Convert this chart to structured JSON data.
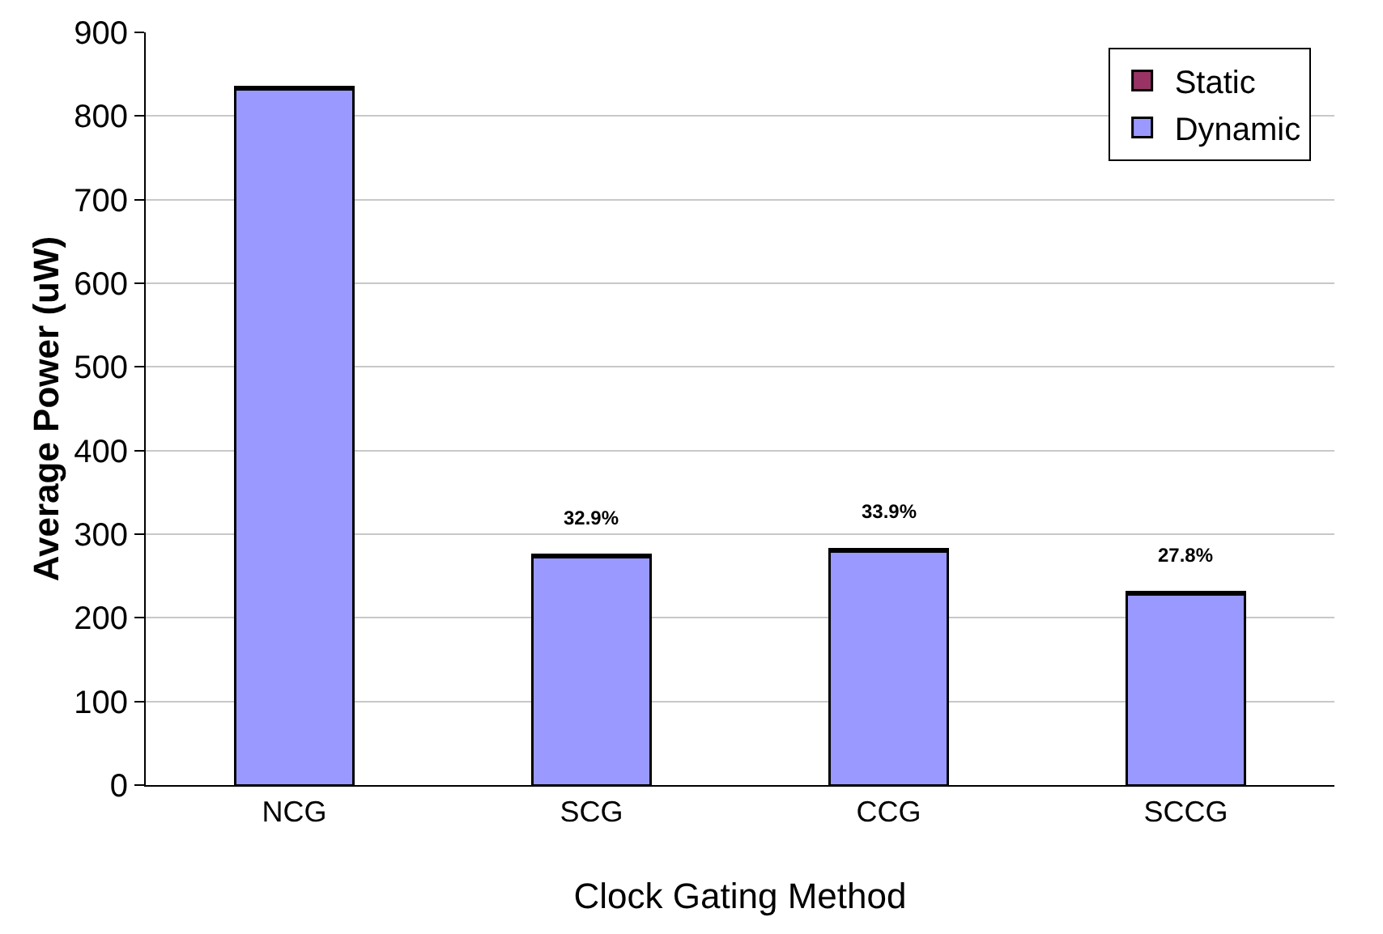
{
  "chart_data": {
    "type": "bar",
    "stacked": true,
    "xlabel": "Clock Gating Method",
    "ylabel": "Average Power (uW)",
    "categories": [
      "NCG",
      "SCG",
      "CCG",
      "SCCG"
    ],
    "series": [
      {
        "name": "Dynamic",
        "color": "#9999ff",
        "values": [
          832,
          272,
          279,
          228
        ]
      },
      {
        "name": "Static",
        "color": "#993366",
        "values": [
          3,
          3,
          3,
          3
        ]
      }
    ],
    "ylim": [
      0,
      900
    ],
    "yticks": [
      0,
      100,
      200,
      300,
      400,
      500,
      600,
      700,
      800,
      900
    ],
    "grid": "y",
    "legend": "top right",
    "annotations": [
      {
        "text": "32.9%",
        "x": "SCG",
        "y": 275
      },
      {
        "text": "33.9%",
        "x": "CCG",
        "y": 282
      },
      {
        "text": "27.8%",
        "x": "SCCG",
        "y": 231
      }
    ]
  }
}
